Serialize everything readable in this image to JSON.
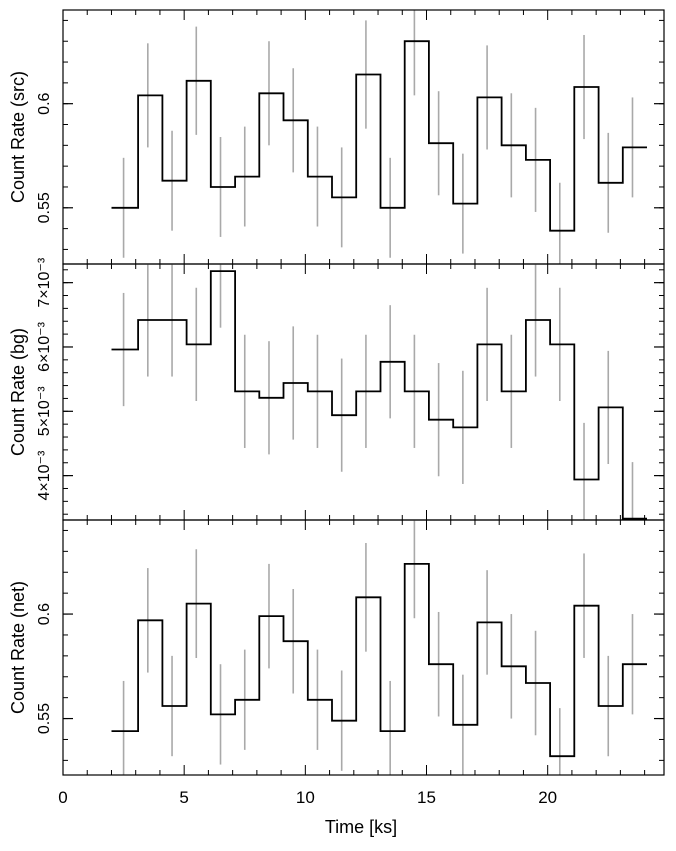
{
  "chart_data": {
    "type": "line",
    "xlabel": "Time [ks]",
    "xlim": [
      0,
      24.8
    ],
    "xticks": [
      0,
      5,
      10,
      15,
      20
    ],
    "xtick_labels": [
      "0",
      "5",
      "10",
      "15",
      "20"
    ],
    "bin_centers": [
      2.5,
      3.5,
      4.5,
      5.5,
      6.5,
      7.5,
      8.5,
      9.5,
      10.5,
      11.5,
      12.5,
      13.5,
      14.5,
      15.5,
      16.5,
      17.5,
      18.5,
      19.5,
      20.5,
      21.5,
      22.5,
      23.5
    ],
    "bin_edges": [
      2.0,
      3.1,
      4.1,
      5.1,
      6.1,
      7.1,
      8.1,
      9.1,
      10.1,
      11.1,
      12.1,
      13.1,
      14.1,
      15.1,
      16.1,
      17.1,
      18.1,
      19.1,
      20.1,
      21.1,
      22.1,
      23.1,
      24.1
    ],
    "panels": [
      {
        "name": "src",
        "ylabel": "Count Rate (src)",
        "ylim": [
          0.523,
          0.645
        ],
        "yticks": [
          0.55,
          0.6
        ],
        "ytick_labels": [
          "0.55",
          "0.6"
        ],
        "minor_step": 0.01,
        "values": [
          0.55,
          0.604,
          0.563,
          0.611,
          0.56,
          0.565,
          0.605,
          0.592,
          0.565,
          0.555,
          0.614,
          0.55,
          0.63,
          0.581,
          0.552,
          0.603,
          0.58,
          0.573,
          0.539,
          0.608,
          0.562,
          0.579
        ],
        "errors": [
          0.024,
          0.025,
          0.024,
          0.026,
          0.024,
          0.024,
          0.025,
          0.025,
          0.024,
          0.024,
          0.026,
          0.024,
          0.026,
          0.025,
          0.024,
          0.025,
          0.025,
          0.025,
          0.023,
          0.025,
          0.024,
          0.024
        ]
      },
      {
        "name": "bg",
        "ylabel": "Count Rate (bg)",
        "ylim": [
          0.00331,
          0.00729
        ],
        "yticks": [
          0.004,
          0.005,
          0.006,
          0.007
        ],
        "ytick_labels": [
          "4×10⁻³",
          "5×10⁻³",
          "6×10⁻³",
          "7×10⁻³"
        ],
        "minor_step": 0.0002,
        "values": [
          0.00596,
          0.00642,
          0.00642,
          0.00604,
          0.00718,
          0.00531,
          0.00521,
          0.00544,
          0.00531,
          0.00494,
          0.00531,
          0.00577,
          0.00531,
          0.00487,
          0.00475,
          0.00604,
          0.00531,
          0.00642,
          0.00604,
          0.00394,
          0.00506,
          0.00333
        ],
        "errors": [
          0.00088,
          0.00088,
          0.00088,
          0.00088,
          0.00088,
          0.00088,
          0.00088,
          0.00088,
          0.00088,
          0.00088,
          0.00088,
          0.00088,
          0.00088,
          0.00088,
          0.00088,
          0.00088,
          0.00088,
          0.00088,
          0.00088,
          0.00088,
          0.00088,
          0.00088
        ]
      },
      {
        "name": "net",
        "ylabel": "Count Rate (net)",
        "ylim": [
          0.523,
          0.645
        ],
        "yticks": [
          0.55,
          0.6
        ],
        "ytick_labels": [
          "0.55",
          "0.6"
        ],
        "minor_step": 0.01,
        "values": [
          0.544,
          0.597,
          0.556,
          0.605,
          0.552,
          0.559,
          0.599,
          0.587,
          0.559,
          0.549,
          0.608,
          0.544,
          0.624,
          0.576,
          0.547,
          0.596,
          0.575,
          0.567,
          0.532,
          0.604,
          0.556,
          0.576
        ],
        "errors": [
          0.024,
          0.025,
          0.024,
          0.026,
          0.024,
          0.024,
          0.025,
          0.025,
          0.024,
          0.024,
          0.026,
          0.024,
          0.026,
          0.025,
          0.024,
          0.025,
          0.025,
          0.025,
          0.023,
          0.025,
          0.024,
          0.024
        ]
      }
    ],
    "colors": {
      "step": "#000000",
      "error": "#a9a9a9",
      "axes": "#000000"
    },
    "grid": false,
    "legend": "none"
  }
}
